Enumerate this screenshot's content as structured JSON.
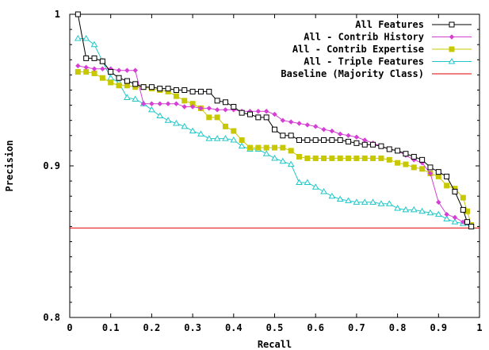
{
  "chart_data": {
    "type": "line",
    "title": "",
    "xlabel": "Recall",
    "ylabel": "Precision",
    "xlim": [
      0,
      1
    ],
    "ylim": [
      0.8,
      1
    ],
    "x_ticks": [
      "0",
      "0.1",
      "0.2",
      "0.3",
      "0.4",
      "0.5",
      "0.6",
      "0.7",
      "0.8",
      "0.9",
      "1"
    ],
    "y_ticks": [
      "0.8",
      "0.9",
      "1"
    ],
    "grid": false,
    "legend_position": "top-right",
    "series": [
      {
        "name": "All Features",
        "color": "#000000",
        "marker": "square-open",
        "points": [
          [
            0.02,
            1.0
          ],
          [
            0.04,
            0.971
          ],
          [
            0.06,
            0.971
          ],
          [
            0.08,
            0.969
          ],
          [
            0.1,
            0.962
          ],
          [
            0.12,
            0.958
          ],
          [
            0.14,
            0.956
          ],
          [
            0.16,
            0.954
          ],
          [
            0.18,
            0.952
          ],
          [
            0.2,
            0.952
          ],
          [
            0.22,
            0.951
          ],
          [
            0.24,
            0.951
          ],
          [
            0.26,
            0.95
          ],
          [
            0.28,
            0.95
          ],
          [
            0.3,
            0.949
          ],
          [
            0.32,
            0.949
          ],
          [
            0.34,
            0.949
          ],
          [
            0.36,
            0.943
          ],
          [
            0.38,
            0.942
          ],
          [
            0.4,
            0.939
          ],
          [
            0.42,
            0.935
          ],
          [
            0.44,
            0.934
          ],
          [
            0.46,
            0.932
          ],
          [
            0.48,
            0.932
          ],
          [
            0.5,
            0.924
          ],
          [
            0.52,
            0.92
          ],
          [
            0.54,
            0.92
          ],
          [
            0.56,
            0.917
          ],
          [
            0.58,
            0.917
          ],
          [
            0.6,
            0.917
          ],
          [
            0.62,
            0.917
          ],
          [
            0.64,
            0.917
          ],
          [
            0.66,
            0.917
          ],
          [
            0.68,
            0.916
          ],
          [
            0.7,
            0.915
          ],
          [
            0.72,
            0.914
          ],
          [
            0.74,
            0.914
          ],
          [
            0.76,
            0.913
          ],
          [
            0.78,
            0.911
          ],
          [
            0.8,
            0.91
          ],
          [
            0.82,
            0.908
          ],
          [
            0.84,
            0.906
          ],
          [
            0.86,
            0.904
          ],
          [
            0.88,
            0.899
          ],
          [
            0.9,
            0.896
          ],
          [
            0.92,
            0.893
          ],
          [
            0.94,
            0.883
          ],
          [
            0.96,
            0.871
          ],
          [
            0.97,
            0.863
          ],
          [
            0.98,
            0.86
          ]
        ]
      },
      {
        "name": "All - Contrib History",
        "color": "#d43fd4",
        "marker": "diamond",
        "points": [
          [
            0.02,
            0.966
          ],
          [
            0.04,
            0.965
          ],
          [
            0.06,
            0.964
          ],
          [
            0.08,
            0.964
          ],
          [
            0.1,
            0.964
          ],
          [
            0.12,
            0.963
          ],
          [
            0.14,
            0.963
          ],
          [
            0.16,
            0.963
          ],
          [
            0.18,
            0.941
          ],
          [
            0.2,
            0.941
          ],
          [
            0.22,
            0.941
          ],
          [
            0.24,
            0.941
          ],
          [
            0.26,
            0.941
          ],
          [
            0.28,
            0.939
          ],
          [
            0.3,
            0.939
          ],
          [
            0.32,
            0.938
          ],
          [
            0.34,
            0.938
          ],
          [
            0.36,
            0.937
          ],
          [
            0.38,
            0.937
          ],
          [
            0.4,
            0.937
          ],
          [
            0.42,
            0.936
          ],
          [
            0.44,
            0.936
          ],
          [
            0.46,
            0.936
          ],
          [
            0.48,
            0.936
          ],
          [
            0.5,
            0.934
          ],
          [
            0.52,
            0.93
          ],
          [
            0.54,
            0.929
          ],
          [
            0.56,
            0.928
          ],
          [
            0.58,
            0.927
          ],
          [
            0.6,
            0.926
          ],
          [
            0.62,
            0.924
          ],
          [
            0.64,
            0.923
          ],
          [
            0.66,
            0.921
          ],
          [
            0.68,
            0.92
          ],
          [
            0.7,
            0.919
          ],
          [
            0.72,
            0.917
          ],
          [
            0.74,
            0.915
          ],
          [
            0.76,
            0.913
          ],
          [
            0.78,
            0.911
          ],
          [
            0.8,
            0.91
          ],
          [
            0.82,
            0.907
          ],
          [
            0.84,
            0.904
          ],
          [
            0.86,
            0.902
          ],
          [
            0.88,
            0.895
          ],
          [
            0.9,
            0.876
          ],
          [
            0.92,
            0.868
          ],
          [
            0.94,
            0.866
          ],
          [
            0.96,
            0.863
          ],
          [
            0.98,
            0.86
          ]
        ]
      },
      {
        "name": "All - Contrib Expertise",
        "color": "#c8c800",
        "marker": "square-filled",
        "points": [
          [
            0.02,
            0.962
          ],
          [
            0.04,
            0.962
          ],
          [
            0.06,
            0.961
          ],
          [
            0.08,
            0.958
          ],
          [
            0.1,
            0.955
          ],
          [
            0.12,
            0.953
          ],
          [
            0.14,
            0.953
          ],
          [
            0.16,
            0.952
          ],
          [
            0.18,
            0.952
          ],
          [
            0.2,
            0.951
          ],
          [
            0.22,
            0.95
          ],
          [
            0.24,
            0.949
          ],
          [
            0.26,
            0.946
          ],
          [
            0.28,
            0.943
          ],
          [
            0.3,
            0.941
          ],
          [
            0.32,
            0.938
          ],
          [
            0.34,
            0.932
          ],
          [
            0.36,
            0.932
          ],
          [
            0.38,
            0.926
          ],
          [
            0.4,
            0.923
          ],
          [
            0.42,
            0.917
          ],
          [
            0.44,
            0.912
          ],
          [
            0.46,
            0.912
          ],
          [
            0.48,
            0.912
          ],
          [
            0.5,
            0.912
          ],
          [
            0.52,
            0.912
          ],
          [
            0.54,
            0.91
          ],
          [
            0.56,
            0.906
          ],
          [
            0.58,
            0.905
          ],
          [
            0.6,
            0.905
          ],
          [
            0.62,
            0.905
          ],
          [
            0.64,
            0.905
          ],
          [
            0.66,
            0.905
          ],
          [
            0.68,
            0.905
          ],
          [
            0.7,
            0.905
          ],
          [
            0.72,
            0.905
          ],
          [
            0.74,
            0.905
          ],
          [
            0.76,
            0.905
          ],
          [
            0.78,
            0.904
          ],
          [
            0.8,
            0.902
          ],
          [
            0.82,
            0.901
          ],
          [
            0.84,
            0.899
          ],
          [
            0.86,
            0.898
          ],
          [
            0.88,
            0.895
          ],
          [
            0.9,
            0.893
          ],
          [
            0.92,
            0.887
          ],
          [
            0.94,
            0.885
          ],
          [
            0.96,
            0.879
          ],
          [
            0.97,
            0.87
          ],
          [
            0.98,
            0.861
          ]
        ]
      },
      {
        "name": "All - Triple Features",
        "color": "#1fc8c8",
        "marker": "triangle-open",
        "points": [
          [
            0.02,
            0.984
          ],
          [
            0.04,
            0.984
          ],
          [
            0.06,
            0.98
          ],
          [
            0.08,
            0.969
          ],
          [
            0.1,
            0.958
          ],
          [
            0.12,
            0.955
          ],
          [
            0.14,
            0.945
          ],
          [
            0.16,
            0.944
          ],
          [
            0.18,
            0.941
          ],
          [
            0.2,
            0.937
          ],
          [
            0.22,
            0.933
          ],
          [
            0.24,
            0.93
          ],
          [
            0.26,
            0.928
          ],
          [
            0.28,
            0.926
          ],
          [
            0.3,
            0.923
          ],
          [
            0.32,
            0.921
          ],
          [
            0.34,
            0.918
          ],
          [
            0.36,
            0.918
          ],
          [
            0.38,
            0.918
          ],
          [
            0.4,
            0.917
          ],
          [
            0.42,
            0.913
          ],
          [
            0.44,
            0.911
          ],
          [
            0.46,
            0.911
          ],
          [
            0.48,
            0.908
          ],
          [
            0.5,
            0.905
          ],
          [
            0.52,
            0.903
          ],
          [
            0.54,
            0.901
          ],
          [
            0.56,
            0.889
          ],
          [
            0.58,
            0.889
          ],
          [
            0.6,
            0.886
          ],
          [
            0.62,
            0.883
          ],
          [
            0.64,
            0.88
          ],
          [
            0.66,
            0.878
          ],
          [
            0.68,
            0.877
          ],
          [
            0.7,
            0.876
          ],
          [
            0.72,
            0.876
          ],
          [
            0.74,
            0.876
          ],
          [
            0.76,
            0.875
          ],
          [
            0.78,
            0.875
          ],
          [
            0.8,
            0.872
          ],
          [
            0.82,
            0.871
          ],
          [
            0.84,
            0.871
          ],
          [
            0.86,
            0.87
          ],
          [
            0.88,
            0.869
          ],
          [
            0.9,
            0.868
          ],
          [
            0.92,
            0.865
          ],
          [
            0.94,
            0.863
          ],
          [
            0.96,
            0.862
          ],
          [
            0.98,
            0.86
          ]
        ]
      },
      {
        "name": "Baseline (Majority Class)",
        "color": "#e00000",
        "marker": "none",
        "points": [
          [
            0.0,
            0.859
          ],
          [
            1.0,
            0.859
          ]
        ]
      }
    ]
  }
}
